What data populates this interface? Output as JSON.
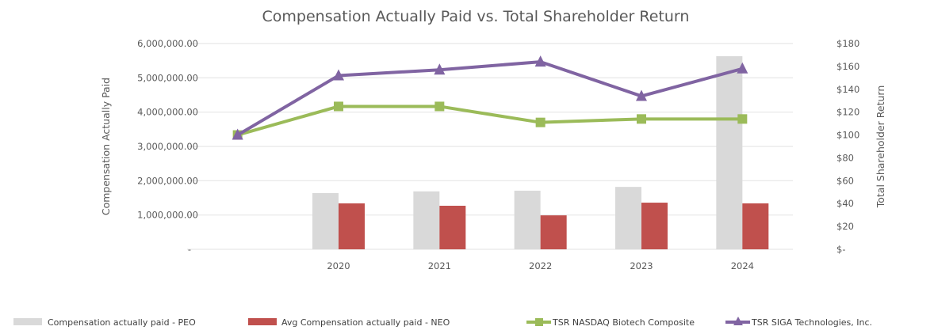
{
  "chart_data": {
    "type": "bar",
    "title": "Compensation Actually Paid vs. Total Shareholder Return",
    "categories": [
      "",
      "2020",
      "2021",
      "2022",
      "2023",
      "2024"
    ],
    "left_axis": {
      "label": "Compensation Actually Paid",
      "ylim": [
        0,
        6000000
      ],
      "ticks": [
        "-",
        "1,000,000.00",
        "2,000,000.00",
        "3,000,000.00",
        "4,000,000.00",
        "5,000,000.00",
        "6,000,000.00"
      ]
    },
    "right_axis": {
      "label": "Total Shareholder Return",
      "ylim": [
        0,
        180
      ],
      "ticks": [
        "$-",
        "$20",
        "$40",
        "$60",
        "$80",
        "$100",
        "$120",
        "$140",
        "$160",
        "$180"
      ]
    },
    "grid": true,
    "legend_position": "bottom",
    "series": [
      {
        "name": "Compensation actually paid - PEO",
        "kind": "bar",
        "axis": "left",
        "color": "#d9d9d9",
        "values": [
          null,
          1640000,
          1690000,
          1710000,
          1820000,
          5630000
        ]
      },
      {
        "name": "Avg Compensation actually paid - NEO",
        "kind": "bar",
        "axis": "left",
        "color": "#c0504d",
        "values": [
          null,
          1340000,
          1270000,
          990000,
          1360000,
          1340000
        ]
      },
      {
        "name": "TSR NASDAQ Biotech Composite",
        "kind": "line",
        "marker": "square",
        "axis": "right",
        "color": "#9bbb59",
        "values": [
          100,
          125,
          125,
          111,
          114,
          114
        ]
      },
      {
        "name": "TSR SIGA Technologies, Inc.",
        "kind": "line",
        "marker": "triangle",
        "axis": "right",
        "color": "#8064a2",
        "values": [
          100,
          152,
          157,
          164,
          134,
          158
        ]
      }
    ]
  }
}
